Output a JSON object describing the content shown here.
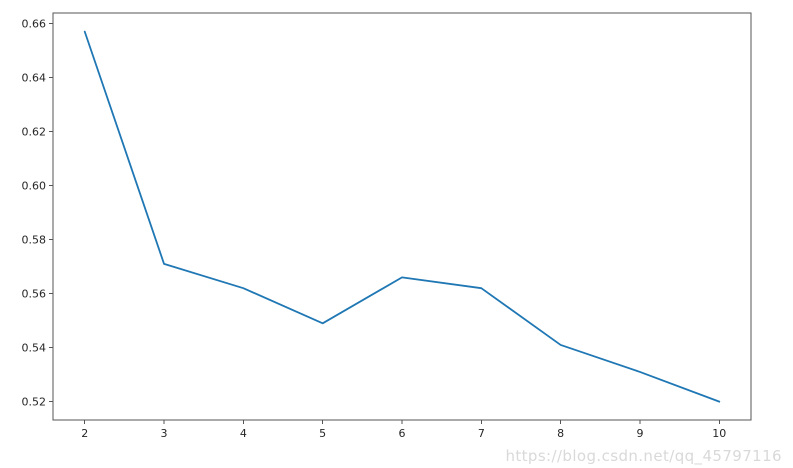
{
  "figure": {
    "background": "#ffffff"
  },
  "watermark": {
    "text": "https://blog.csdn.net/qq_45797116",
    "color": "#d9d9d9"
  },
  "chart_data": {
    "type": "line",
    "title": "",
    "xlabel": "",
    "ylabel": "",
    "x": [
      2,
      3,
      4,
      5,
      6,
      7,
      8,
      9,
      10
    ],
    "y": [
      0.657,
      0.571,
      0.562,
      0.549,
      0.566,
      0.562,
      0.541,
      0.531,
      0.52
    ],
    "xlim": [
      1.6,
      10.4
    ],
    "ylim": [
      0.5132,
      0.6639
    ],
    "xticks": [
      2,
      3,
      4,
      5,
      6,
      7,
      8,
      9,
      10
    ],
    "xtick_labels": [
      "2",
      "3",
      "4",
      "5",
      "6",
      "7",
      "8",
      "9",
      "10"
    ],
    "yticks": [
      0.52,
      0.54,
      0.56,
      0.58,
      0.6,
      0.62,
      0.64,
      0.66
    ],
    "ytick_labels": [
      "0.52",
      "0.54",
      "0.56",
      "0.58",
      "0.60",
      "0.62",
      "0.64",
      "0.66"
    ],
    "grid": false,
    "legend": null,
    "line_color": "#1f77b4",
    "line_width": 1.8,
    "spine_color": "#555555",
    "tick_label_color": "#262626"
  }
}
